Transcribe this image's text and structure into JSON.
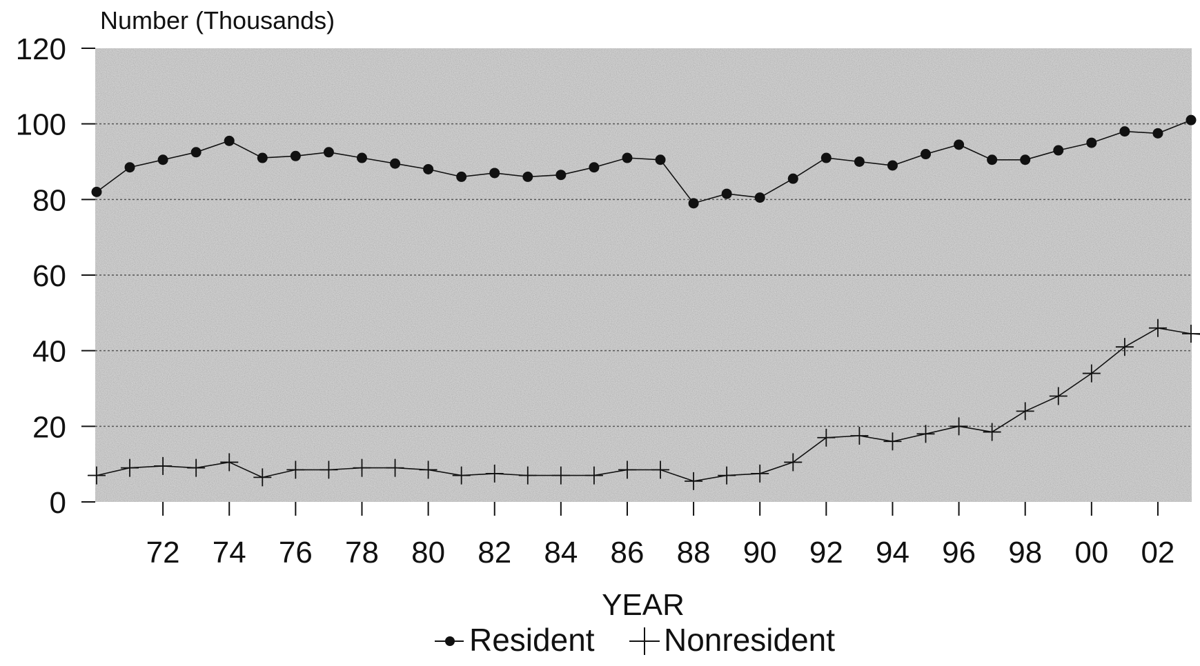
{
  "chart_data": {
    "type": "line",
    "ylabel": "Number (Thousands)",
    "xlabel": "YEAR",
    "ylim": [
      0,
      120
    ],
    "yticks": [
      "0",
      "20",
      "40",
      "60",
      "80",
      "100",
      "120"
    ],
    "xlim": [
      1970,
      2003.3
    ],
    "xticks": [
      "72",
      "74",
      "76",
      "78",
      "80",
      "82",
      "84",
      "86",
      "88",
      "90",
      "92",
      "94",
      "96",
      "98",
      "00",
      "02"
    ],
    "grid": "horizontal dashed",
    "legend_position": "bottom-center",
    "x": [
      1970,
      1971,
      1972,
      1973,
      1974,
      1975,
      1976,
      1977,
      1978,
      1979,
      1980,
      1981,
      1982,
      1983,
      1984,
      1985,
      1986,
      1987,
      1988,
      1989,
      1990,
      1991,
      1992,
      1993,
      1994,
      1995,
      1996,
      1997,
      1998,
      1999,
      2000,
      2001,
      2002,
      2003
    ],
    "series": [
      {
        "name": "Resident",
        "marker": "dot",
        "values": [
          82,
          88.5,
          90.5,
          92.5,
          95.5,
          91,
          91.5,
          92.5,
          91,
          89.5,
          88,
          86,
          87,
          86,
          86.5,
          88.5,
          91,
          90.5,
          79,
          81.5,
          80.5,
          85.5,
          91,
          90,
          89,
          92,
          94.5,
          90.5,
          90.5,
          93,
          95,
          98,
          97.5,
          101
        ]
      },
      {
        "name": "Nonresident",
        "marker": "plus",
        "values": [
          7,
          9,
          9.5,
          9,
          10.5,
          6.5,
          8.5,
          8.5,
          9,
          9,
          8.5,
          7,
          7.5,
          7,
          7,
          7,
          8.5,
          8.5,
          5.5,
          7,
          7.5,
          10.5,
          17,
          17.5,
          16,
          18,
          20,
          18.5,
          24,
          28,
          34,
          41,
          46,
          44.5
        ]
      }
    ]
  }
}
